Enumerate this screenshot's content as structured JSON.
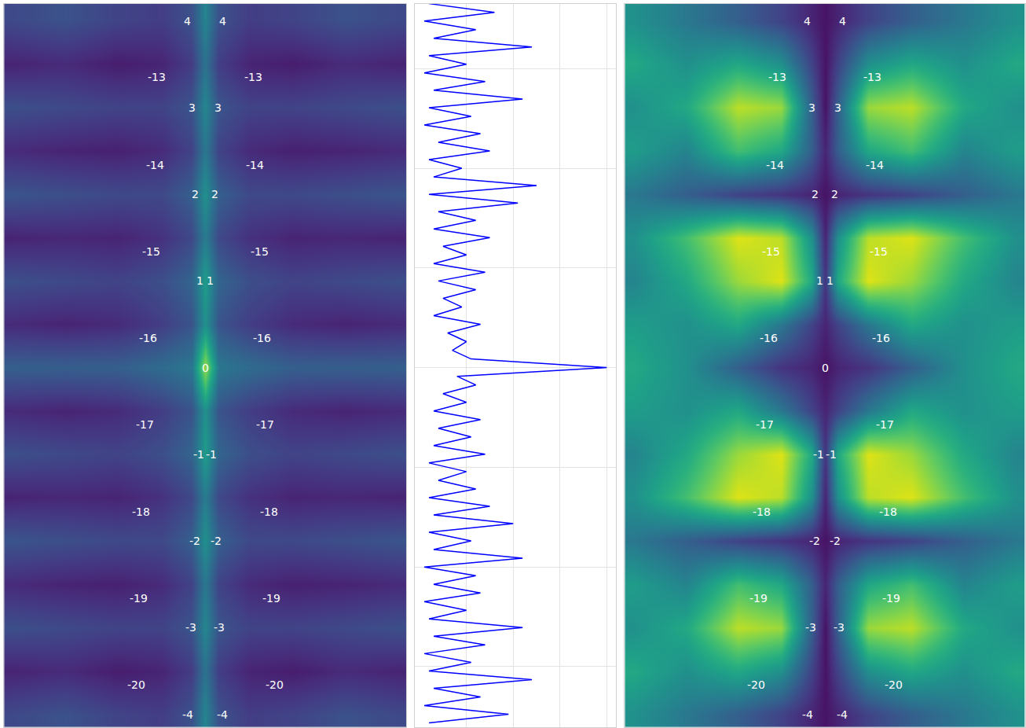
{
  "chart_data": [
    {
      "type": "heatmap",
      "color": "Viridis",
      "tick_labels": false,
      "grid": false,
      "xlim": [
        -2.3,
        2.3
      ],
      "ylim": [
        -4.15,
        4.2
      ],
      "zlim": [
        0,
        1
      ],
      "x": [
        -2.2,
        -1.6,
        -1.0,
        -0.5,
        -0.15,
        0,
        0.15,
        0.5,
        1.0,
        1.6,
        2.2
      ],
      "y": [
        -4,
        -3.5,
        -3,
        -2.5,
        -2,
        -1.5,
        -1,
        -0.5,
        0,
        0.5,
        1,
        1.5,
        2,
        2.5,
        3,
        3.5,
        4
      ],
      "z": [
        [
          0.22,
          0.25,
          0.2,
          0.18,
          0.25,
          0.45,
          0.25,
          0.18,
          0.2,
          0.25,
          0.22
        ],
        [
          0.1,
          0.12,
          0.08,
          0.1,
          0.18,
          0.38,
          0.18,
          0.1,
          0.08,
          0.12,
          0.1
        ],
        [
          0.24,
          0.22,
          0.2,
          0.2,
          0.26,
          0.46,
          0.26,
          0.2,
          0.2,
          0.22,
          0.24
        ],
        [
          0.12,
          0.1,
          0.09,
          0.12,
          0.2,
          0.4,
          0.2,
          0.12,
          0.09,
          0.1,
          0.12
        ],
        [
          0.26,
          0.24,
          0.22,
          0.22,
          0.3,
          0.5,
          0.3,
          0.22,
          0.22,
          0.24,
          0.26
        ],
        [
          0.1,
          0.11,
          0.1,
          0.14,
          0.22,
          0.42,
          0.22,
          0.14,
          0.1,
          0.11,
          0.1
        ],
        [
          0.24,
          0.22,
          0.2,
          0.24,
          0.32,
          0.55,
          0.32,
          0.24,
          0.2,
          0.22,
          0.24
        ],
        [
          0.12,
          0.1,
          0.12,
          0.18,
          0.26,
          0.5,
          0.26,
          0.18,
          0.12,
          0.1,
          0.12
        ],
        [
          0.3,
          0.3,
          0.3,
          0.35,
          0.4,
          0.85,
          0.4,
          0.35,
          0.3,
          0.3,
          0.3
        ],
        [
          0.12,
          0.1,
          0.12,
          0.18,
          0.26,
          0.5,
          0.26,
          0.18,
          0.12,
          0.1,
          0.12
        ],
        [
          0.24,
          0.22,
          0.2,
          0.24,
          0.32,
          0.55,
          0.32,
          0.24,
          0.2,
          0.22,
          0.24
        ],
        [
          0.1,
          0.11,
          0.1,
          0.14,
          0.22,
          0.42,
          0.22,
          0.14,
          0.1,
          0.11,
          0.1
        ],
        [
          0.26,
          0.24,
          0.22,
          0.22,
          0.3,
          0.5,
          0.3,
          0.22,
          0.22,
          0.24,
          0.26
        ],
        [
          0.12,
          0.1,
          0.09,
          0.12,
          0.2,
          0.4,
          0.2,
          0.12,
          0.09,
          0.1,
          0.12
        ],
        [
          0.24,
          0.22,
          0.2,
          0.2,
          0.26,
          0.46,
          0.26,
          0.2,
          0.2,
          0.22,
          0.24
        ],
        [
          0.1,
          0.12,
          0.08,
          0.1,
          0.18,
          0.38,
          0.18,
          0.1,
          0.08,
          0.12,
          0.1
        ],
        [
          0.22,
          0.25,
          0.2,
          0.18,
          0.25,
          0.45,
          0.25,
          0.18,
          0.2,
          0.25,
          0.22
        ]
      ],
      "labels": [
        {
          "text": "4",
          "x": -0.2,
          "y": 4.0
        },
        {
          "text": "4",
          "x": 0.2,
          "y": 4.0
        },
        {
          "text": "-13",
          "x": -0.55,
          "y": 3.35
        },
        {
          "text": "-13",
          "x": 0.55,
          "y": 3.35
        },
        {
          "text": "3",
          "x": -0.15,
          "y": 3.0
        },
        {
          "text": "3",
          "x": 0.15,
          "y": 3.0
        },
        {
          "text": "-14",
          "x": -0.57,
          "y": 2.34
        },
        {
          "text": "-14",
          "x": 0.57,
          "y": 2.34
        },
        {
          "text": "2",
          "x": -0.11,
          "y": 2.0
        },
        {
          "text": "2",
          "x": 0.11,
          "y": 2.0
        },
        {
          "text": "-15",
          "x": -0.62,
          "y": 1.34
        },
        {
          "text": "-15",
          "x": 0.62,
          "y": 1.34
        },
        {
          "text": "1",
          "x": -0.06,
          "y": 1.0
        },
        {
          "text": "1",
          "x": 0.06,
          "y": 1.0
        },
        {
          "text": "-16",
          "x": -0.65,
          "y": 0.34
        },
        {
          "text": "-16",
          "x": 0.65,
          "y": 0.34
        },
        {
          "text": "0",
          "x": 0,
          "y": 0
        },
        {
          "text": "-17",
          "x": -0.69,
          "y": -0.66
        },
        {
          "text": "-17",
          "x": 0.69,
          "y": -0.66
        },
        {
          "text": "-1",
          "x": -0.07,
          "y": -1.0
        },
        {
          "text": "-1",
          "x": 0.07,
          "y": -1.0
        },
        {
          "text": "-18",
          "x": -0.73,
          "y": -1.66
        },
        {
          "text": "-18",
          "x": 0.73,
          "y": -1.66
        },
        {
          "text": "-2",
          "x": -0.12,
          "y": -2.0
        },
        {
          "text": "-2",
          "x": 0.12,
          "y": -2.0
        },
        {
          "text": "-19",
          "x": -0.76,
          "y": -2.66
        },
        {
          "text": "-19",
          "x": 0.76,
          "y": -2.66
        },
        {
          "text": "-3",
          "x": -0.16,
          "y": -3.0
        },
        {
          "text": "-3",
          "x": 0.16,
          "y": -3.0
        },
        {
          "text": "-20",
          "x": -0.79,
          "y": -3.66
        },
        {
          "text": "-20",
          "x": 0.79,
          "y": -3.66
        },
        {
          "text": "-4",
          "x": -0.2,
          "y": -4.0
        },
        {
          "text": "-4",
          "x": 0.2,
          "y": -4.0
        }
      ]
    },
    {
      "type": "line",
      "color": "#0000ff",
      "tick_labels": false,
      "grid": true,
      "xlim": [
        -0.11,
        4.19
      ],
      "ylim": [
        -4.15,
        4.2
      ],
      "xticks": [
        1,
        2,
        3,
        4
      ],
      "yticks": [
        -3.45,
        -2.3,
        -1.15,
        0,
        1.15,
        2.3,
        3.45
      ],
      "y": [
        4.2,
        4.1,
        4.0,
        3.9,
        3.8,
        3.7,
        3.6,
        3.5,
        3.4,
        3.3,
        3.2,
        3.1,
        3.0,
        2.9,
        2.8,
        2.7,
        2.6,
        2.5,
        2.4,
        2.3,
        2.2,
        2.1,
        2.0,
        1.9,
        1.8,
        1.7,
        1.6,
        1.5,
        1.4,
        1.3,
        1.2,
        1.1,
        1.0,
        0.9,
        0.8,
        0.7,
        0.6,
        0.5,
        0.4,
        0.3,
        0.2,
        0.1,
        0.0,
        -0.1,
        -0.2,
        -0.3,
        -0.4,
        -0.5,
        -0.6,
        -0.7,
        -0.8,
        -0.9,
        -1.0,
        -1.1,
        -1.2,
        -1.3,
        -1.4,
        -1.5,
        -1.6,
        -1.7,
        -1.8,
        -1.9,
        -2.0,
        -2.1,
        -2.2,
        -2.3,
        -2.4,
        -2.5,
        -2.6,
        -2.7,
        -2.8,
        -2.9,
        -3.0,
        -3.1,
        -3.2,
        -3.3,
        -3.4,
        -3.5,
        -3.6,
        -3.7,
        -3.8,
        -3.9,
        -4.0,
        -4.1
      ],
      "values": [
        0.2,
        1.6,
        0.1,
        1.2,
        0.3,
        2.4,
        0.2,
        1.0,
        0.1,
        1.4,
        0.3,
        2.2,
        0.2,
        1.1,
        0.1,
        1.3,
        0.4,
        1.5,
        0.2,
        0.9,
        0.3,
        2.5,
        0.2,
        2.1,
        0.4,
        1.2,
        0.3,
        1.5,
        0.5,
        1.0,
        0.3,
        1.4,
        0.4,
        1.2,
        0.5,
        0.9,
        0.3,
        1.3,
        0.6,
        1.0,
        0.7,
        1.1,
        4.0,
        0.8,
        1.2,
        0.5,
        1.0,
        0.3,
        1.3,
        0.4,
        1.1,
        0.3,
        1.4,
        0.2,
        1.0,
        0.4,
        1.2,
        0.2,
        1.5,
        0.3,
        2.0,
        0.2,
        1.1,
        0.3,
        2.2,
        0.1,
        1.2,
        0.3,
        1.3,
        0.1,
        1.0,
        0.2,
        2.2,
        0.3,
        1.4,
        0.1,
        1.1,
        0.2,
        2.4,
        0.3,
        1.3,
        0.1,
        1.9,
        0.2
      ]
    },
    {
      "type": "heatmap",
      "color": "Viridis",
      "tick_labels": false,
      "grid": false,
      "xlim": [
        -2.3,
        2.3
      ],
      "ylim": [
        -4.15,
        4.2
      ],
      "zlim": [
        0,
        1
      ],
      "x": [
        -2.2,
        -1.6,
        -1.0,
        -0.5,
        -0.15,
        0,
        0.15,
        0.5,
        1.0,
        1.6,
        2.2
      ],
      "y": [
        -4,
        -3.5,
        -3,
        -2.5,
        -2,
        -1.5,
        -1,
        -0.5,
        0,
        0.5,
        1,
        1.5,
        2,
        2.5,
        3,
        3.5,
        4
      ],
      "z": [
        [
          0.5,
          0.4,
          0.3,
          0.2,
          0.1,
          0.05,
          0.1,
          0.2,
          0.3,
          0.4,
          0.5
        ],
        [
          0.6,
          0.5,
          0.6,
          0.5,
          0.2,
          0.05,
          0.2,
          0.5,
          0.6,
          0.5,
          0.6
        ],
        [
          0.5,
          0.6,
          0.9,
          0.85,
          0.3,
          0.05,
          0.3,
          0.85,
          0.9,
          0.6,
          0.5
        ],
        [
          0.55,
          0.45,
          0.7,
          0.6,
          0.3,
          0.1,
          0.3,
          0.6,
          0.7,
          0.45,
          0.55
        ],
        [
          0.4,
          0.3,
          0.2,
          0.15,
          0.1,
          0.05,
          0.1,
          0.15,
          0.2,
          0.3,
          0.4
        ],
        [
          0.5,
          0.7,
          0.95,
          0.9,
          0.5,
          0.1,
          0.5,
          0.9,
          0.95,
          0.7,
          0.5
        ],
        [
          0.45,
          0.6,
          0.85,
          0.95,
          0.6,
          0.15,
          0.6,
          0.95,
          0.85,
          0.6,
          0.45
        ],
        [
          0.55,
          0.5,
          0.6,
          0.4,
          0.2,
          0.1,
          0.2,
          0.4,
          0.6,
          0.5,
          0.55
        ],
        [
          0.6,
          0.5,
          0.3,
          0.15,
          0.1,
          0.05,
          0.1,
          0.15,
          0.3,
          0.5,
          0.6
        ],
        [
          0.55,
          0.5,
          0.6,
          0.4,
          0.2,
          0.1,
          0.2,
          0.4,
          0.6,
          0.5,
          0.55
        ],
        [
          0.45,
          0.6,
          0.85,
          0.95,
          0.6,
          0.15,
          0.6,
          0.95,
          0.85,
          0.6,
          0.45
        ],
        [
          0.5,
          0.7,
          0.95,
          0.9,
          0.5,
          0.1,
          0.5,
          0.9,
          0.95,
          0.7,
          0.5
        ],
        [
          0.4,
          0.3,
          0.2,
          0.15,
          0.1,
          0.05,
          0.1,
          0.15,
          0.2,
          0.3,
          0.4
        ],
        [
          0.55,
          0.45,
          0.7,
          0.6,
          0.3,
          0.1,
          0.3,
          0.6,
          0.7,
          0.45,
          0.55
        ],
        [
          0.5,
          0.6,
          0.9,
          0.85,
          0.3,
          0.05,
          0.3,
          0.85,
          0.9,
          0.6,
          0.5
        ],
        [
          0.6,
          0.5,
          0.6,
          0.5,
          0.2,
          0.05,
          0.2,
          0.5,
          0.6,
          0.5,
          0.6
        ],
        [
          0.5,
          0.4,
          0.3,
          0.2,
          0.1,
          0.05,
          0.1,
          0.2,
          0.3,
          0.4,
          0.5
        ]
      ],
      "labels": [
        {
          "text": "4",
          "x": -0.2,
          "y": 4.0
        },
        {
          "text": "4",
          "x": 0.2,
          "y": 4.0
        },
        {
          "text": "-13",
          "x": -0.55,
          "y": 3.35
        },
        {
          "text": "-13",
          "x": 0.55,
          "y": 3.35
        },
        {
          "text": "3",
          "x": -0.15,
          "y": 3.0
        },
        {
          "text": "3",
          "x": 0.15,
          "y": 3.0
        },
        {
          "text": "-14",
          "x": -0.57,
          "y": 2.34
        },
        {
          "text": "-14",
          "x": 0.57,
          "y": 2.34
        },
        {
          "text": "2",
          "x": -0.11,
          "y": 2.0
        },
        {
          "text": "2",
          "x": 0.11,
          "y": 2.0
        },
        {
          "text": "-15",
          "x": -0.62,
          "y": 1.34
        },
        {
          "text": "-15",
          "x": 0.62,
          "y": 1.34
        },
        {
          "text": "1",
          "x": -0.06,
          "y": 1.0
        },
        {
          "text": "1",
          "x": 0.06,
          "y": 1.0
        },
        {
          "text": "-16",
          "x": -0.65,
          "y": 0.34
        },
        {
          "text": "-16",
          "x": 0.65,
          "y": 0.34
        },
        {
          "text": "0",
          "x": 0,
          "y": 0
        },
        {
          "text": "-17",
          "x": -0.69,
          "y": -0.66
        },
        {
          "text": "-17",
          "x": 0.69,
          "y": -0.66
        },
        {
          "text": "-1",
          "x": -0.07,
          "y": -1.0
        },
        {
          "text": "-1",
          "x": 0.07,
          "y": -1.0
        },
        {
          "text": "-18",
          "x": -0.73,
          "y": -1.66
        },
        {
          "text": "-18",
          "x": 0.73,
          "y": -1.66
        },
        {
          "text": "-2",
          "x": -0.12,
          "y": -2.0
        },
        {
          "text": "-2",
          "x": 0.12,
          "y": -2.0
        },
        {
          "text": "-19",
          "x": -0.76,
          "y": -2.66
        },
        {
          "text": "-19",
          "x": 0.76,
          "y": -2.66
        },
        {
          "text": "-3",
          "x": -0.16,
          "y": -3.0
        },
        {
          "text": "-3",
          "x": 0.16,
          "y": -3.0
        },
        {
          "text": "-20",
          "x": -0.79,
          "y": -3.66
        },
        {
          "text": "-20",
          "x": 0.79,
          "y": -3.66
        },
        {
          "text": "-4",
          "x": -0.2,
          "y": -4.0
        },
        {
          "text": "-4",
          "x": 0.2,
          "y": -4.0
        }
      ]
    }
  ]
}
